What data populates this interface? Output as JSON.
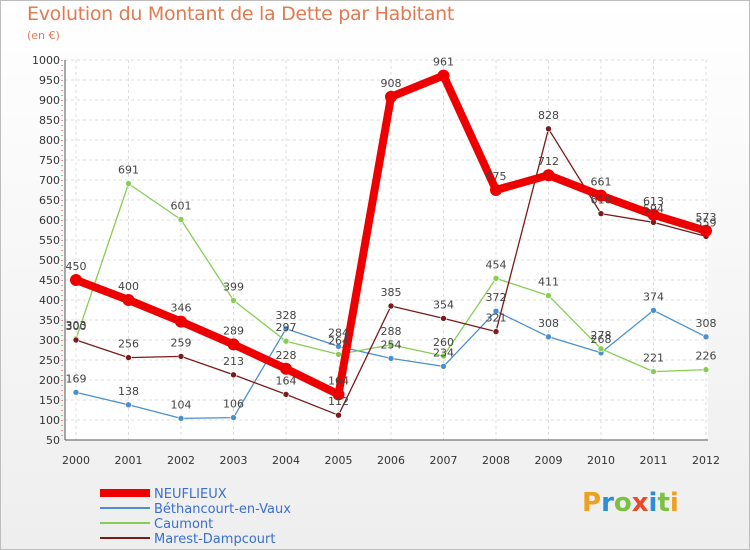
{
  "chart_data": {
    "type": "line",
    "title": "Evolution du Montant de la Dette par Habitant",
    "subtitle": "(en €)",
    "x": [
      "2000",
      "2001",
      "2002",
      "2003",
      "2004",
      "2005",
      "2006",
      "2007",
      "2008",
      "2009",
      "2010",
      "2011",
      "2012"
    ],
    "ylim": [
      50,
      1000
    ],
    "yticks": [
      50,
      100,
      150,
      200,
      250,
      300,
      350,
      400,
      450,
      500,
      550,
      600,
      650,
      700,
      750,
      800,
      850,
      900,
      950,
      1000
    ],
    "grid": true,
    "legend": "bottom-left",
    "series": [
      {
        "name": "NEUFLIEUX",
        "color": "#ee0000",
        "values": [
          450,
          400,
          346,
          289,
          228,
          164,
          908,
          961,
          675,
          712,
          661,
          613,
          573
        ]
      },
      {
        "name": "Béthancourt-en-Vaux",
        "color": "#4a90d0",
        "values": [
          169,
          138,
          104,
          106,
          328,
          284,
          254,
          234,
          372,
          308,
          268,
          374,
          308
        ]
      },
      {
        "name": "Caumont",
        "color": "#88cc55",
        "values": [
          303,
          691,
          601,
          399,
          297,
          264,
          288,
          260,
          454,
          411,
          278,
          221,
          226
        ]
      },
      {
        "name": "Marest-Dampcourt",
        "color": "#7a1a1a",
        "values": [
          300,
          256,
          259,
          213,
          164,
          112,
          385,
          354,
          321,
          828,
          616,
          594,
          559
        ]
      }
    ]
  },
  "logo": {
    "letters": [
      "P",
      "r",
      "o",
      "x",
      "i",
      "t",
      "i"
    ],
    "colors": [
      "#f0a020",
      "#2a8fd6",
      "#7cc242",
      "#e84a2a",
      "#2a8fd6",
      "#7cc242",
      "#f0a020"
    ]
  }
}
